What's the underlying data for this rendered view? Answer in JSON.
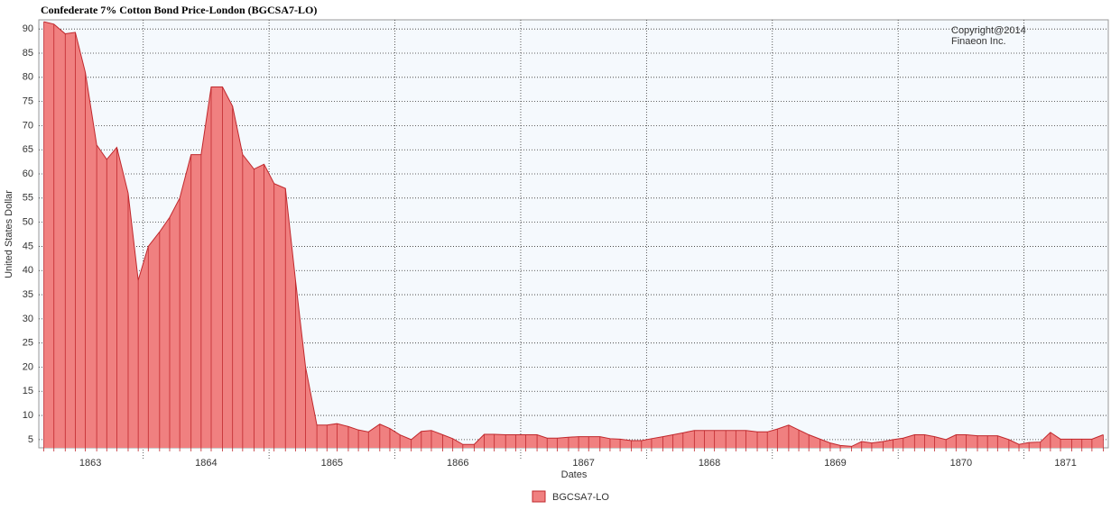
{
  "chart_data": {
    "type": "area",
    "title": "Confederate 7% Cotton Bond Price-London (BGCSA7-LO)",
    "annotation": [
      "Copyright@2014",
      "Finaeon Inc."
    ],
    "x_label": "Dates",
    "y_label": "United States Dollar",
    "x": [
      1863.21,
      1863.29,
      1863.38,
      1863.46,
      1863.54,
      1863.63,
      1863.71,
      1863.79,
      1863.88,
      1863.96,
      1864.04,
      1864.13,
      1864.21,
      1864.29,
      1864.38,
      1864.46,
      1864.54,
      1864.63,
      1864.71,
      1864.79,
      1864.88,
      1864.96,
      1865.04,
      1865.13,
      1865.21,
      1865.29,
      1865.38,
      1865.46,
      1865.54,
      1865.63,
      1865.71,
      1865.79,
      1865.88,
      1865.96,
      1866.04,
      1866.13,
      1866.21,
      1866.29,
      1866.38,
      1866.46,
      1866.54,
      1866.63,
      1866.71,
      1866.79,
      1866.88,
      1866.96,
      1867.04,
      1867.13,
      1867.21,
      1867.29,
      1867.38,
      1867.46,
      1867.54,
      1867.63,
      1867.71,
      1867.79,
      1867.88,
      1867.96,
      1868.04,
      1868.13,
      1868.21,
      1868.29,
      1868.38,
      1868.46,
      1868.54,
      1868.63,
      1868.71,
      1868.79,
      1868.88,
      1868.96,
      1869.04,
      1869.13,
      1869.21,
      1869.29,
      1869.38,
      1869.46,
      1869.54,
      1869.63,
      1869.71,
      1869.79,
      1869.88,
      1869.96,
      1870.04,
      1870.13,
      1870.21,
      1870.29,
      1870.38,
      1870.46,
      1870.54,
      1870.63,
      1870.71,
      1870.79,
      1870.88,
      1870.96,
      1871.04,
      1871.13,
      1871.21,
      1871.29,
      1871.38,
      1871.46,
      1871.54,
      1871.63
    ],
    "series": [
      {
        "name": "BGCSA7-LO",
        "color": "#f08080",
        "line_color": "#c0282d",
        "values": [
          91.5,
          91,
          89,
          89.3,
          81,
          66,
          63,
          65.5,
          56,
          38,
          45,
          48,
          51,
          55,
          64,
          64,
          78,
          78,
          74,
          64,
          61,
          62,
          58,
          57,
          38,
          20,
          8,
          8,
          8.3,
          7.7,
          7,
          6.6,
          8.2,
          7.3,
          6,
          5,
          6.7,
          6.9,
          6,
          5.2,
          4,
          4,
          6.1,
          6.1,
          6,
          6,
          6,
          6,
          5.3,
          5.3,
          5.5,
          5.6,
          5.6,
          5.6,
          5.2,
          5.1,
          4.8,
          4.8,
          5.2,
          5.6,
          6,
          6.4,
          6.9,
          6.9,
          6.9,
          6.9,
          6.9,
          6.9,
          6.6,
          6.6,
          7.2,
          8,
          7,
          6,
          5.1,
          4.3,
          3.8,
          3.6,
          4.6,
          4.3,
          4.6,
          5,
          5.3,
          6,
          6,
          5.6,
          5,
          6,
          6,
          5.8,
          5.8,
          5.8,
          5,
          4,
          4.4,
          4.5,
          6.5,
          5.1,
          5.1,
          5.1,
          5.1,
          6
        ]
      }
    ],
    "xlim": [
      1863.17,
      1871.67
    ],
    "xticks": [
      {
        "value": 1863.58,
        "label": "1863"
      },
      {
        "value": 1864.5,
        "label": "1864"
      },
      {
        "value": 1865.5,
        "label": "1865"
      },
      {
        "value": 1866.5,
        "label": "1866"
      },
      {
        "value": 1867.5,
        "label": "1867"
      },
      {
        "value": 1868.5,
        "label": "1868"
      },
      {
        "value": 1869.5,
        "label": "1869"
      },
      {
        "value": 1870.5,
        "label": "1870"
      },
      {
        "value": 1871.33,
        "label": "1871"
      }
    ],
    "xgrid": [
      1864,
      1865,
      1866,
      1867,
      1868,
      1869,
      1870,
      1871
    ],
    "ylim": [
      3.3,
      91.9
    ],
    "yticks": [
      5,
      10,
      15,
      20,
      25,
      30,
      35,
      40,
      45,
      50,
      55,
      60,
      65,
      70,
      75,
      80,
      85,
      90
    ],
    "grid": true,
    "plot_background": "#f5f9fd"
  }
}
